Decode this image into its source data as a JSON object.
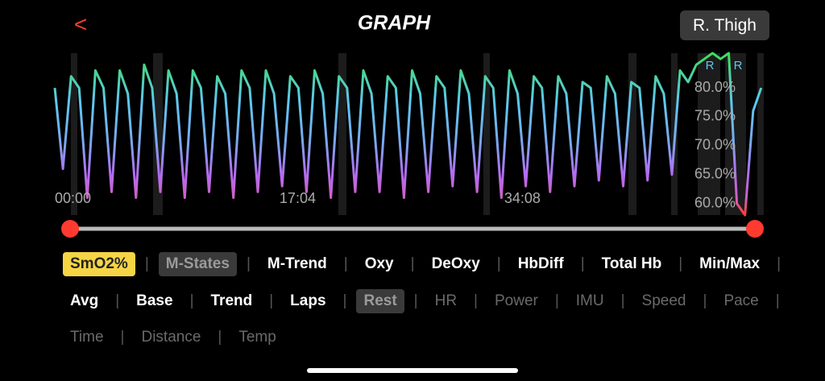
{
  "header": {
    "back": "<",
    "title": "GRAPH",
    "device": "R. Thigh"
  },
  "chart": {
    "type": "line",
    "x": [
      0,
      37,
      74,
      111,
      148,
      185,
      222,
      259,
      296,
      333,
      370,
      407,
      444,
      481,
      518,
      555,
      592,
      629,
      666,
      703,
      740,
      777,
      814,
      851,
      888,
      925,
      962,
      999,
      1036,
      1073,
      1110,
      1147,
      1184,
      1221,
      1258,
      1295,
      1332,
      1369,
      1406,
      1443,
      1480,
      1517,
      1554,
      1591,
      1628,
      1665,
      1702,
      1739,
      1776,
      1813,
      1850,
      1887,
      1924,
      1961,
      1998,
      2035,
      2072,
      2109,
      2146,
      2183,
      2220,
      2257,
      2294,
      2331,
      2368,
      2405,
      2442,
      2479,
      2516,
      2553,
      2590,
      2627,
      2664,
      2701,
      2738,
      2775,
      2812,
      2849,
      2886,
      2923,
      2960,
      2997,
      3034,
      3071,
      3108,
      3145,
      3182,
      3219
    ],
    "values": [
      80,
      66,
      82,
      80,
      61,
      83,
      80,
      62,
      83,
      79,
      61,
      84,
      80,
      62,
      83,
      79,
      61,
      83,
      80,
      62,
      82,
      79,
      61,
      83,
      80,
      62,
      83,
      79,
      63,
      82,
      80,
      62,
      83,
      79,
      61,
      82,
      80,
      62,
      83,
      79,
      62,
      82,
      80,
      61,
      83,
      79,
      62,
      82,
      80,
      63,
      83,
      79,
      62,
      82,
      80,
      61,
      83,
      79,
      63,
      82,
      80,
      62,
      82,
      79,
      63,
      81,
      80,
      64,
      82,
      79,
      63,
      81,
      80,
      64,
      82,
      79,
      65,
      83,
      81,
      84,
      85,
      86,
      85,
      86,
      60,
      58,
      76,
      80
    ],
    "xlim": [
      0,
      3260
    ],
    "ylim": [
      58,
      86
    ],
    "yticks": [
      {
        "value": 80,
        "label": "80.0%"
      },
      {
        "value": 75,
        "label": "75.0%"
      },
      {
        "value": 70,
        "label": "70.0%"
      },
      {
        "value": 65,
        "label": "65.0%"
      },
      {
        "value": 60,
        "label": "60.0%"
      }
    ],
    "xticks": [
      {
        "value": 0,
        "label": "00:00"
      },
      {
        "value": 1024,
        "label": "17:04"
      },
      {
        "value": 2048,
        "label": "34:08"
      }
    ],
    "markers": [
      "R",
      "R"
    ]
  },
  "options": [
    [
      {
        "label": "SmO2%",
        "state": "selected"
      },
      {
        "label": "M-States",
        "state": "muted"
      },
      {
        "label": "M-Trend",
        "state": "on"
      },
      {
        "label": "Oxy",
        "state": "on"
      },
      {
        "label": "DeOxy",
        "state": "on"
      },
      {
        "label": "HbDiff",
        "state": "on"
      },
      {
        "label": "Total Hb",
        "state": "on"
      },
      {
        "label": "Min/Max",
        "state": "on"
      }
    ],
    [
      {
        "label": "Avg",
        "state": "on"
      },
      {
        "label": "Base",
        "state": "on"
      },
      {
        "label": "Trend",
        "state": "on"
      },
      {
        "label": "Laps",
        "state": "on"
      },
      {
        "label": "Rest",
        "state": "muted"
      },
      {
        "label": "HR",
        "state": "off"
      },
      {
        "label": "Power",
        "state": "off"
      },
      {
        "label": "IMU",
        "state": "off"
      },
      {
        "label": "Speed",
        "state": "off"
      },
      {
        "label": "Pace",
        "state": "off"
      }
    ],
    [
      {
        "label": "Time",
        "state": "off"
      },
      {
        "label": "Distance",
        "state": "off"
      },
      {
        "label": "Temp",
        "state": "off"
      }
    ]
  ]
}
